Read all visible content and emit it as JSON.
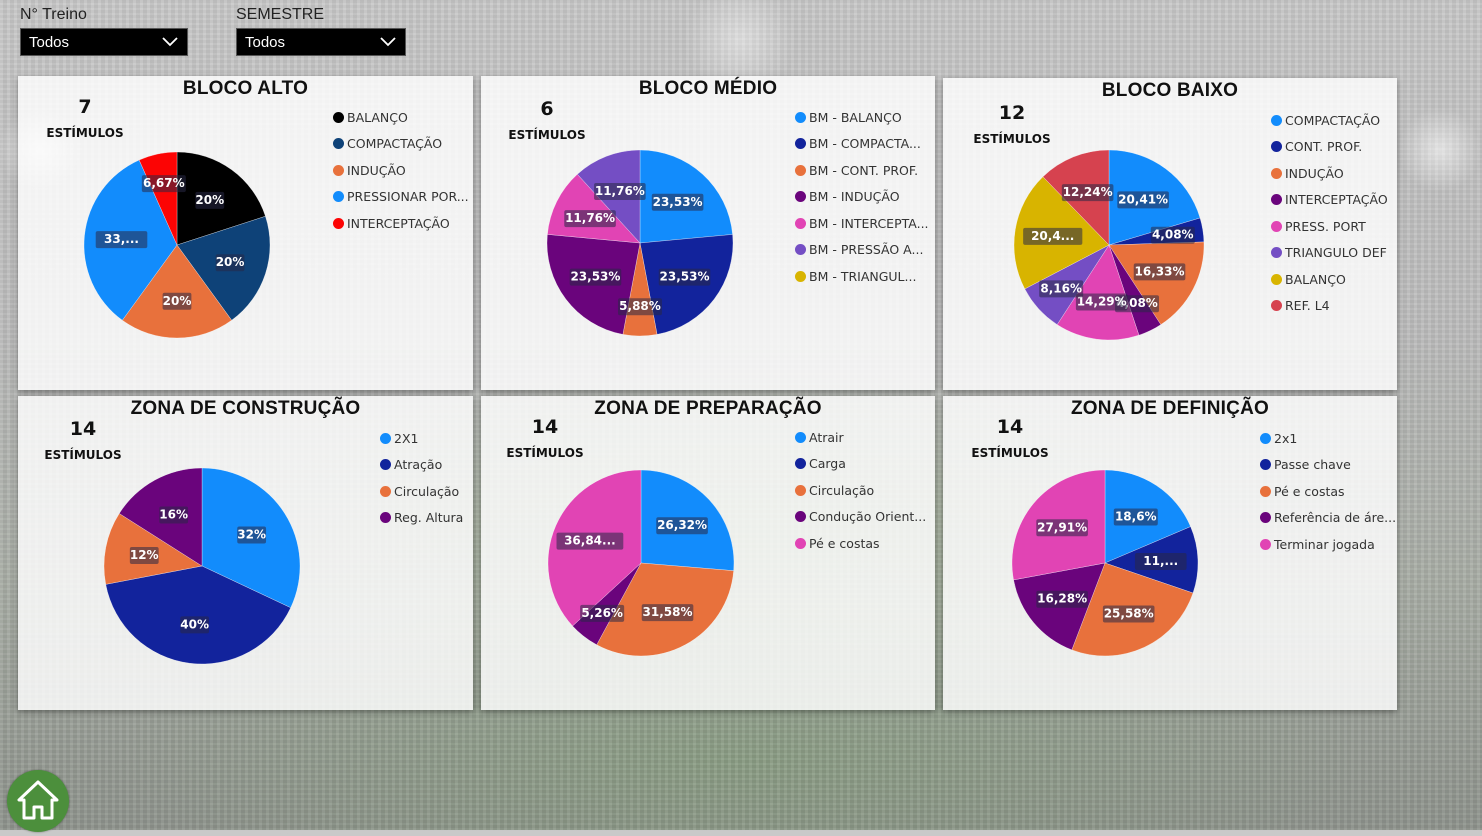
{
  "filters": [
    {
      "label": "N° Treino",
      "value": "Todos"
    },
    {
      "label": "SEMESTRE",
      "value": "Todos"
    }
  ],
  "kpi_label": "ESTÍMULOS",
  "charts": [
    {
      "title": "BLOCO ALTO",
      "kpi": "7",
      "chart_data": {
        "type": "pie",
        "slices": [
          {
            "name": "BALANÇO",
            "value": 20,
            "label": "20%",
            "color": "#000000"
          },
          {
            "name": "COMPACTAÇÃO",
            "value": 20,
            "label": "20%",
            "color": "#0e4278"
          },
          {
            "name": "INDUÇÃO",
            "value": 20,
            "label": "20%",
            "color": "#e8713c"
          },
          {
            "name": "PRESSIONAR POR...",
            "value": 33.33,
            "label": "33,...",
            "color": "#128cfc"
          },
          {
            "name": "INTERCEPTAÇÃO",
            "value": 6.67,
            "label": "6,67%",
            "color": "#fc0404"
          }
        ]
      }
    },
    {
      "title": "BLOCO MÉDIO",
      "kpi": "6",
      "chart_data": {
        "type": "pie",
        "slices": [
          {
            "name": "BM - BALANÇO",
            "value": 23.53,
            "label": "23,53%",
            "color": "#128cfc"
          },
          {
            "name": "BM - COMPACTA...",
            "value": 23.53,
            "label": "23,53%",
            "color": "#12239c"
          },
          {
            "name": "BM - CONT. PROF.",
            "value": 5.88,
            "label": "5,88%",
            "color": "#e8713c"
          },
          {
            "name": "BM - INDUÇÃO",
            "value": 23.53,
            "label": "23,53%",
            "color": "#6a047c"
          },
          {
            "name": "BM - INTERCEPTA...",
            "value": 11.76,
            "label": "11,76%",
            "color": "#e144b4"
          },
          {
            "name": "BM - PRESSÃO A...",
            "value": 11.76,
            "label": "11,76%",
            "color": "#744ec4"
          },
          {
            "name": "BM - TRIANGUL...",
            "value": 0,
            "label": "",
            "color": "#d8b400"
          }
        ]
      }
    },
    {
      "title": "BLOCO BAIXO",
      "kpi": "12",
      "chart_data": {
        "type": "pie",
        "slices": [
          {
            "name": "COMPACTAÇÃO",
            "value": 20.41,
            "label": "20,41%",
            "color": "#128cfc"
          },
          {
            "name": "CONT. PROF.",
            "value": 4.08,
            "label": "4,08%",
            "color": "#12239c"
          },
          {
            "name": "INDUÇÃO",
            "value": 16.33,
            "label": "16,33%",
            "color": "#e8713c"
          },
          {
            "name": "INTERCEPTAÇÃO",
            "value": 4.08,
            "label": "4,08%",
            "color": "#6a047c"
          },
          {
            "name": "PRESS. PORT",
            "value": 14.29,
            "label": "14,29%",
            "color": "#e144b4"
          },
          {
            "name": "TRIANGULO DEF",
            "value": 8.16,
            "label": "8,16%",
            "color": "#744ec4"
          },
          {
            "name": "BALANÇO",
            "value": 20.41,
            "label": "20,4...",
            "color": "#d8b400"
          },
          {
            "name": "REF. L4",
            "value": 12.24,
            "label": "12,24%",
            "color": "#d6424f"
          }
        ]
      }
    },
    {
      "title": "ZONA DE CONSTRUÇÃO",
      "kpi": "14",
      "chart_data": {
        "type": "pie",
        "slices": [
          {
            "name": "2X1",
            "value": 32,
            "label": "32%",
            "color": "#128cfc"
          },
          {
            "name": "Atração",
            "value": 40,
            "label": "40%",
            "color": "#12239c"
          },
          {
            "name": "Circulação",
            "value": 12,
            "label": "12%",
            "color": "#e8713c"
          },
          {
            "name": "Reg. Altura",
            "value": 16,
            "label": "16%",
            "color": "#6a047c"
          }
        ]
      }
    },
    {
      "title": "ZONA DE PREPARAÇÃO",
      "kpi": "14",
      "chart_data": {
        "type": "pie",
        "slices": [
          {
            "name": "Atrair",
            "value": 26.32,
            "label": "26,32%",
            "color": "#128cfc"
          },
          {
            "name": "Carga",
            "value": 0,
            "label": "",
            "color": "#12239c"
          },
          {
            "name": "Circulação",
            "value": 31.58,
            "label": "31,58%",
            "color": "#e8713c"
          },
          {
            "name": "Condução Orient...",
            "value": 5.26,
            "label": "5,26%",
            "color": "#6a047c"
          },
          {
            "name": "Pé e costas",
            "value": 36.84,
            "label": "36,84...",
            "color": "#e144b4"
          }
        ]
      }
    },
    {
      "title": "ZONA DE DEFINIÇÃO",
      "kpi": "14",
      "chart_data": {
        "type": "pie",
        "slices": [
          {
            "name": "2x1",
            "value": 18.6,
            "label": "18,6%",
            "color": "#128cfc"
          },
          {
            "name": "Passe chave",
            "value": 11.63,
            "label": "11,...",
            "color": "#12239c"
          },
          {
            "name": "Pé e costas",
            "value": 25.58,
            "label": "25,58%",
            "color": "#e8713c"
          },
          {
            "name": "Referência de áre...",
            "value": 16.28,
            "label": "16,28%",
            "color": "#6a047c"
          },
          {
            "name": "Terminar jogada",
            "value": 27.91,
            "label": "27,91%",
            "color": "#e144b4"
          }
        ]
      }
    }
  ],
  "icons": {
    "dropdown": "chevron-down-icon",
    "home": "home-icon"
  }
}
